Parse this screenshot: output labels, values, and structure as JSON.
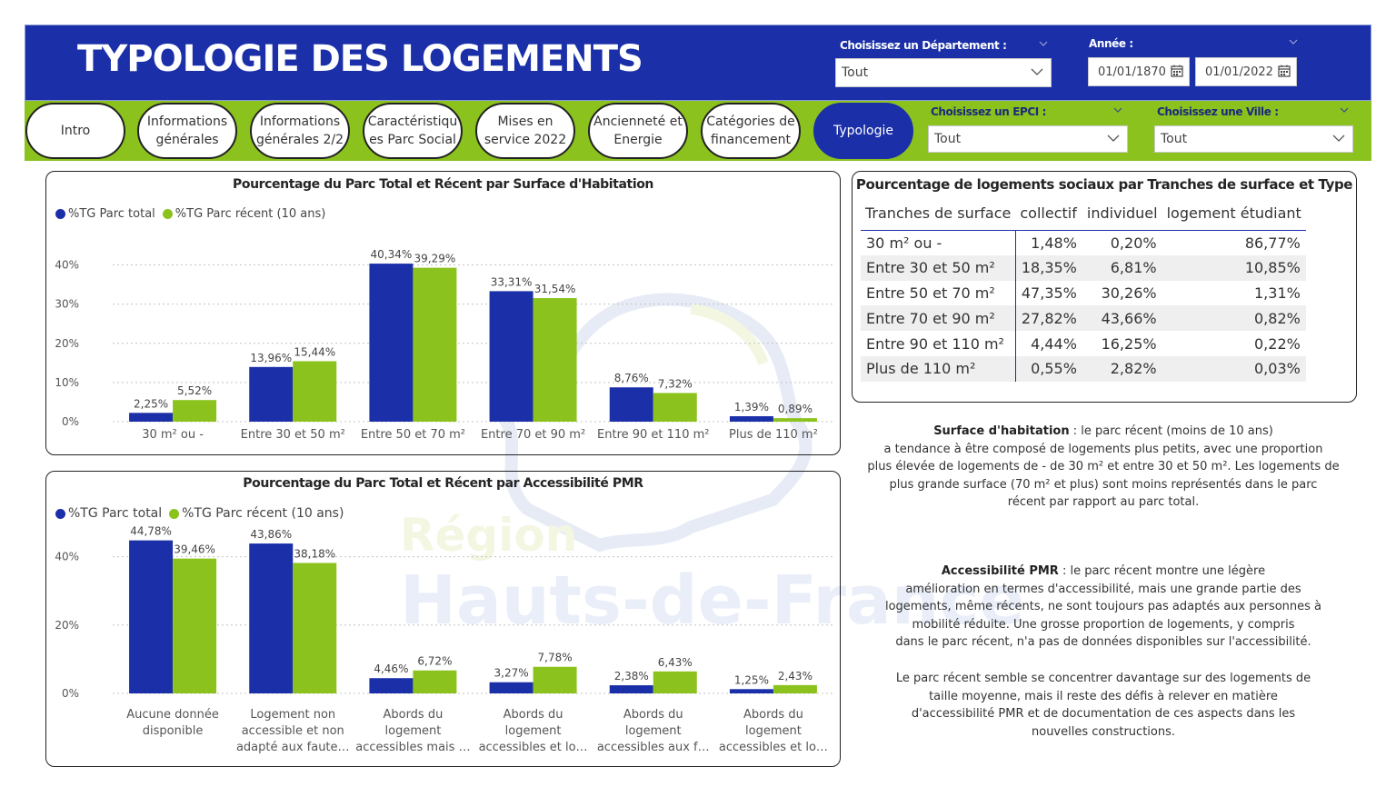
{
  "header": {
    "title": "TYPOLOGIE DES LOGEMENTS",
    "departement": {
      "label": "Choisissez un Département :",
      "value": "Tout"
    },
    "annee": {
      "label": "Année :",
      "start": "01/01/1870",
      "end": "01/01/2022"
    }
  },
  "nav": {
    "buttons": [
      {
        "line1": "Intro",
        "line2": ""
      },
      {
        "line1": "Informations",
        "line2": "générales"
      },
      {
        "line1": "Informations",
        "line2": "générales 2/2"
      },
      {
        "line1": "Caractéristiqu",
        "line2": "es Parc Social"
      },
      {
        "line1": "Mises en",
        "line2": "service 2022"
      },
      {
        "line1": "Ancienneté et",
        "line2": "Energie"
      },
      {
        "line1": "Catégories de",
        "line2": "financement"
      },
      {
        "line1": "Typologie",
        "line2": ""
      }
    ],
    "active_index": 7,
    "epci": {
      "label": "Choisissez un EPCI :",
      "value": "Tout"
    },
    "ville": {
      "label": "Choisissez une Ville :",
      "value": "Tout"
    }
  },
  "watermark": {
    "line1": "Région",
    "line2": "Hauts-de-France"
  },
  "colors": {
    "primary": "#1a2fa8",
    "accent": "#8cc21e"
  },
  "chart_data": [
    {
      "type": "bar",
      "title": "Pourcentage du Parc Total et Récent par Surface d'Habitation",
      "categories": [
        "30 m² ou -",
        "Entre 30 et 50 m²",
        "Entre 50 et 70 m²",
        "Entre 70 et 90 m²",
        "Entre 90 et 110 m²",
        "Plus de 110 m²"
      ],
      "series": [
        {
          "name": "%TG Parc total",
          "color": "#1a2fa8",
          "values": [
            2.25,
            13.96,
            40.34,
            33.31,
            8.76,
            1.39
          ],
          "labels": [
            "2,25%",
            "13,96%",
            "40,34%",
            "33,31%",
            "8,76%",
            "1,39%"
          ]
        },
        {
          "name": "%TG Parc récent (10 ans)",
          "color": "#8cc21e",
          "values": [
            5.52,
            15.44,
            39.29,
            31.54,
            7.32,
            0.89
          ],
          "labels": [
            "5,52%",
            "15,44%",
            "39,29%",
            "31,54%",
            "7,32%",
            "0,89%"
          ]
        }
      ],
      "yticks": [
        "0%",
        "10%",
        "20%",
        "30%",
        "40%"
      ],
      "ylim": [
        0,
        45
      ],
      "grid": true,
      "legend": "top-left"
    },
    {
      "type": "bar",
      "title": "Pourcentage du Parc Total et Récent par Accessibilité PMR",
      "categories": [
        [
          "Aucune donnée",
          "disponible"
        ],
        [
          "Logement non",
          "accessible et non",
          "adapté aux faute…"
        ],
        [
          "Abords du",
          "logement",
          "accessibles mais …"
        ],
        [
          "Abords du",
          "logement",
          "accessibles et lo…"
        ],
        [
          "Abords du",
          "logement",
          "accessibles aux f…"
        ],
        [
          "Abords du",
          "logement",
          "accessibles et lo…"
        ]
      ],
      "series": [
        {
          "name": "%TG Parc total",
          "color": "#1a2fa8",
          "values": [
            44.78,
            43.86,
            4.46,
            3.27,
            2.38,
            1.25
          ],
          "labels": [
            "44,78%",
            "43,86%",
            "4,46%",
            "3,27%",
            "2,38%",
            "1,25%"
          ]
        },
        {
          "name": "%TG Parc récent (10 ans)",
          "color": "#8cc21e",
          "values": [
            39.46,
            38.18,
            6.72,
            7.78,
            6.43,
            2.43
          ],
          "labels": [
            "39,46%",
            "38,18%",
            "6,72%",
            "7,78%",
            "6,43%",
            "2,43%"
          ]
        }
      ],
      "yticks": [
        "0%",
        "20%",
        "40%"
      ],
      "ylim": [
        0,
        50
      ],
      "grid": true,
      "legend": "top-left"
    },
    {
      "type": "table",
      "title": "Pourcentage de logements sociaux par Tranches de surface et Type",
      "columns": [
        "Tranches de surface",
        "collectif",
        "individuel",
        "logement étudiant"
      ],
      "rows": [
        [
          "30 m² ou -",
          "1,48%",
          "0,20%",
          "86,77%"
        ],
        [
          "Entre 30 et 50 m²",
          "18,35%",
          "6,81%",
          "10,85%"
        ],
        [
          "Entre 50 et 70 m²",
          "47,35%",
          "30,26%",
          "1,31%"
        ],
        [
          "Entre 70 et 90 m²",
          "27,82%",
          "43,66%",
          "0,82%"
        ],
        [
          "Entre 90 et 110 m²",
          "4,44%",
          "16,25%",
          "0,22%"
        ],
        [
          "Plus de 110 m²",
          "0,55%",
          "2,82%",
          "0,03%"
        ]
      ]
    }
  ],
  "commentary": {
    "surface": {
      "bold": "Surface d'habitation",
      "lines": [
        " : le parc récent (moins de 10 ans)",
        "a tendance à être composé de logements plus petits, avec une proportion",
        "plus élevée de logements de - de 30 m² et entre 30 et 50 m². Les logements de",
        "plus grande surface (70 m² et plus) sont moins représentés dans le parc",
        "récent par rapport au parc total."
      ]
    },
    "pmr": {
      "bold": "Accessibilité PMR",
      "lines": [
        " : le parc récent montre une légère",
        "amélioration en termes d'accessibilité, mais une grande partie des",
        "logements, même récents, ne sont toujours pas adaptés aux personnes à",
        "mobilité réduite. Une grosse proportion de logements, y compris",
        "dans le parc récent, n'a pas de données disponibles sur l'accessibilité."
      ]
    },
    "conclusion": {
      "lines": [
        "Le parc récent semble se concentrer davantage sur des logements de",
        "taille moyenne, mais il reste des défis à relever en matière",
        "d'accessibilité PMR et de documentation de ces aspects dans les",
        "nouvelles constructions."
      ]
    }
  }
}
